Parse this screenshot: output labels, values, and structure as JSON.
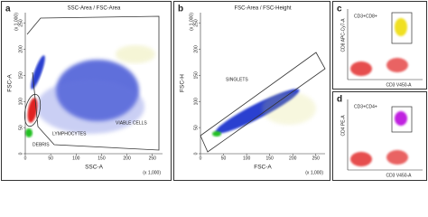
{
  "panels": [
    {
      "letter": "a",
      "title": "SSC-Area / FSC-Area",
      "x_label": "SSC-A",
      "y_label": "FSC-A",
      "x_ticks": [
        0,
        50,
        100,
        150,
        200,
        250
      ],
      "y_ticks": [
        0,
        50,
        100,
        150,
        200,
        250
      ],
      "x_multiplier": "(x 1,000)",
      "y_multiplier": "(x 1,000)",
      "gates": [
        "DEBRIS",
        "LYMPHOCYTES",
        "VIABLE CELLS"
      ]
    },
    {
      "letter": "b",
      "title": "FSC-Area / FSC-Height",
      "x_label": "FSC-A",
      "y_label": "FSC-H",
      "x_ticks": [
        0,
        50,
        100,
        150,
        200,
        250
      ],
      "y_ticks": [
        0,
        50,
        100,
        150,
        200,
        250
      ],
      "x_multiplier": "(x 1,000)",
      "y_multiplier": "(x 1,000)",
      "gates": [
        "SINGLETS"
      ]
    },
    {
      "letter": "c",
      "x_label": "CD3 V450-A",
      "y_label": "CD8 APC-Cy7-A",
      "gates": [
        "CD3+CD8+"
      ]
    },
    {
      "letter": "d",
      "x_label": "CD3 V450-A",
      "y_label": "CD4 PE-A",
      "gates": [
        "CD3+CD4+"
      ]
    }
  ]
}
